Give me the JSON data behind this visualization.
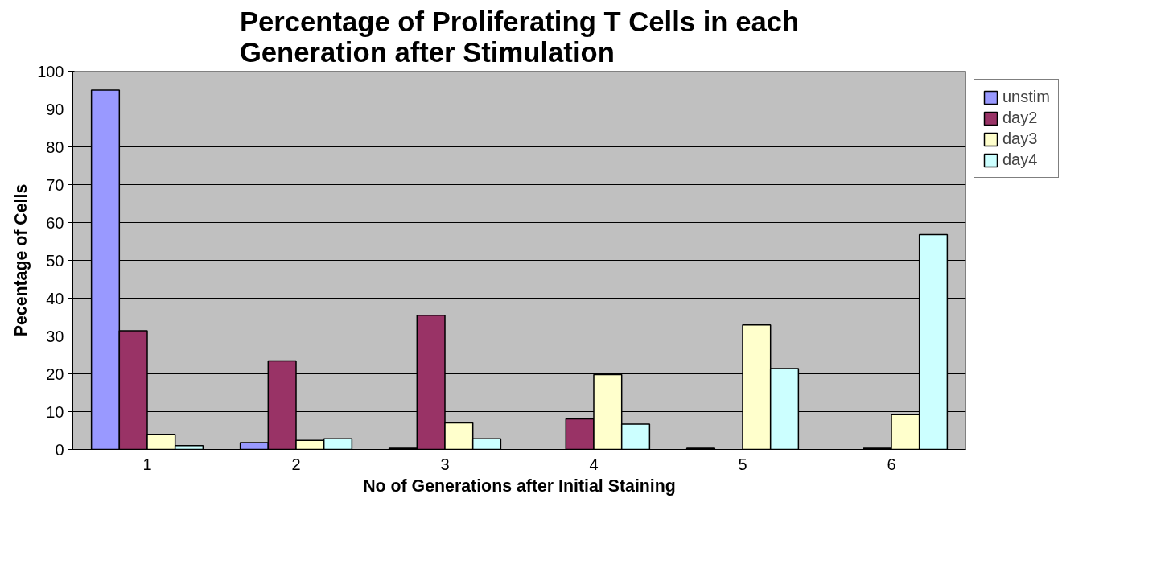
{
  "chart_data": {
    "type": "bar",
    "title": "Percentage of Proliferating T Cells in each\nGeneration after Stimulation",
    "xlabel": "No of Generations after Initial Staining",
    "ylabel": "Pecentage of Cells",
    "categories": [
      "1",
      "2",
      "3",
      "4",
      "5",
      "6"
    ],
    "series": [
      {
        "name": "unstim",
        "color": "#9999ff",
        "values": [
          95,
          1.8,
          0.3,
          null,
          0.3,
          null
        ]
      },
      {
        "name": "day2",
        "color": "#993366",
        "values": [
          31.4,
          23.4,
          35.5,
          8.1,
          null,
          0.3
        ]
      },
      {
        "name": "day3",
        "color": "#ffffcc",
        "values": [
          4,
          2.4,
          7,
          19.8,
          32.9,
          9.2
        ]
      },
      {
        "name": "day4",
        "color": "#ccffff",
        "values": [
          1,
          2.8,
          2.8,
          6.7,
          21.4,
          56.8
        ]
      }
    ],
    "ylim": [
      0,
      100
    ],
    "yticks": [
      0,
      10,
      20,
      30,
      40,
      50,
      60,
      70,
      80,
      90,
      100
    ],
    "grid": "y",
    "legend": "top right"
  }
}
